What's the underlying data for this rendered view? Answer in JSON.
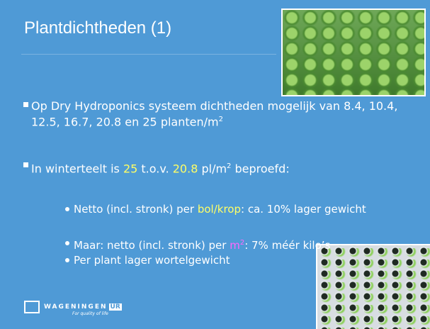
{
  "title": "Plantdichtheden (1)",
  "bullets": [
    {
      "segments": [
        {
          "text": "Op Dry Hydroponics systeem dichtheden mogelijk van 8.4, 10.4, 12.5, 16.7, 20.8 en 25 planten/m"
        },
        {
          "text": "2",
          "sup": true
        }
      ]
    },
    {
      "segments": [
        {
          "text": "In winterteelt is "
        },
        {
          "text": "25",
          "color": "#ffff66"
        },
        {
          "text": " t.o.v. "
        },
        {
          "text": "20.8",
          "color": "#ffff66"
        },
        {
          "text": " pl/m"
        },
        {
          "text": "2",
          "sup": true
        },
        {
          "text": " beproefd:"
        }
      ]
    }
  ],
  "sub_bullets": [
    {
      "segments": [
        {
          "text": "Netto (incl. stronk) per "
        },
        {
          "text": "bol/krop",
          "color": "#ffff66"
        },
        {
          "text": ": ca. 10% lager gewicht"
        }
      ]
    },
    {
      "segments": [
        {
          "text": "Maar: netto (incl. stronk) per "
        },
        {
          "text": "m",
          "color": "#ff66ff"
        },
        {
          "text": "2",
          "sup": true,
          "color": "#ff66ff"
        },
        {
          "text": ": 7% méér kilo’s"
        }
      ]
    },
    {
      "segments": [
        {
          "text": "Per plant lager wortelgewicht"
        }
      ]
    }
  ],
  "logo": {
    "name": "WAGENINGEN",
    "badge": "UR",
    "tagline": "For quality of life"
  }
}
